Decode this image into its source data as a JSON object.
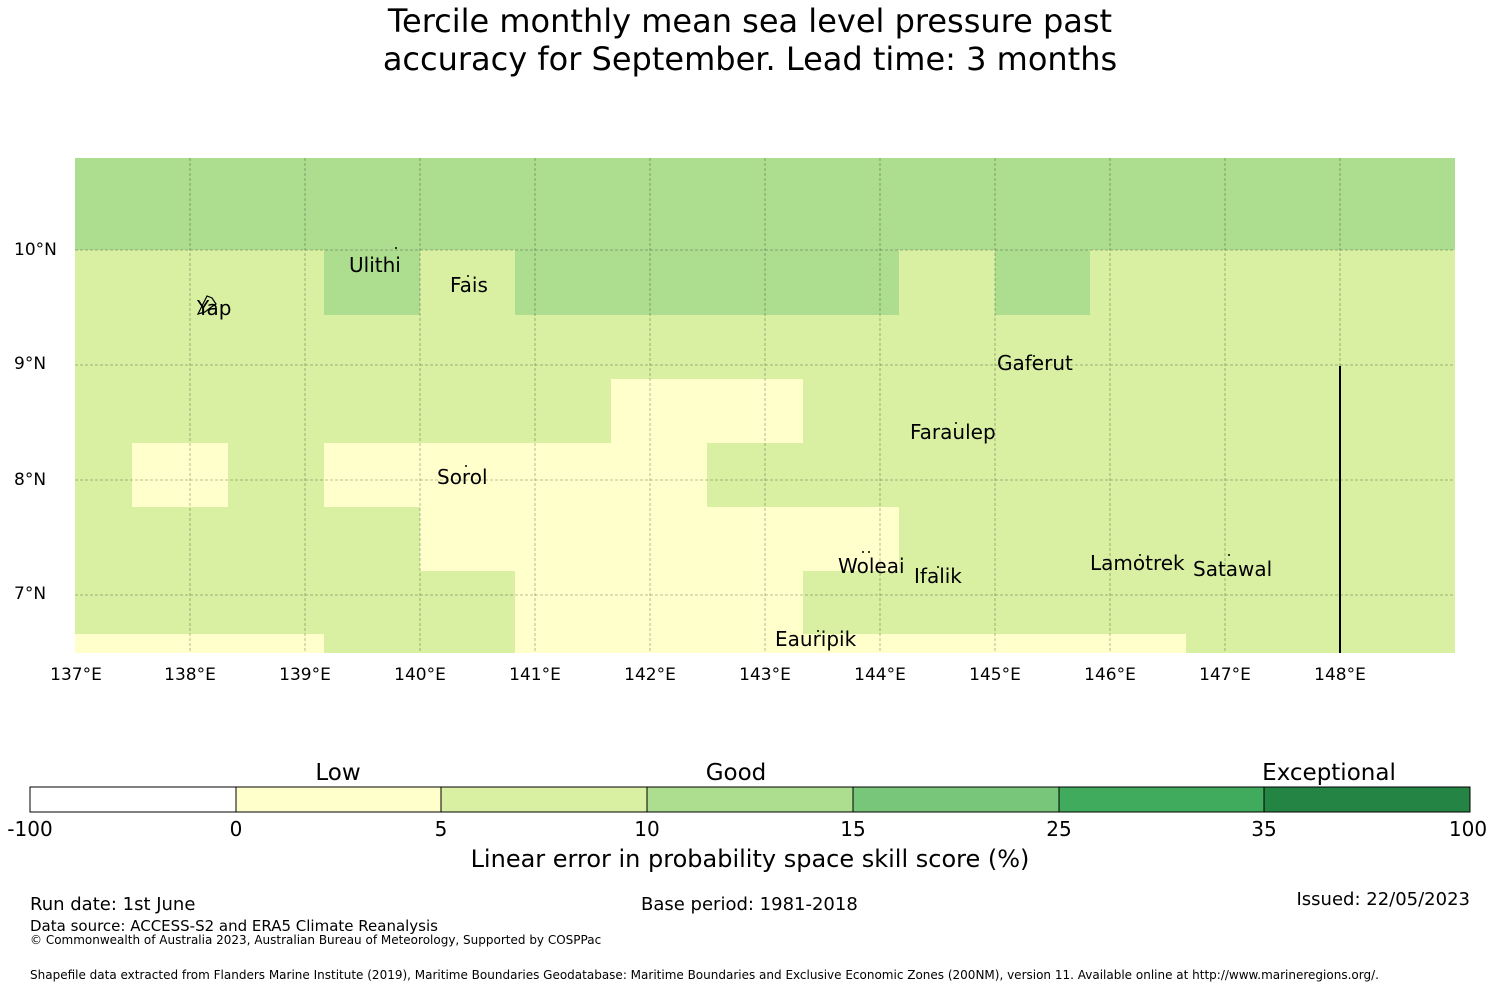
{
  "title_line1": "Tercile monthly mean sea level pressure past",
  "title_line2": "accuracy for September. Lead time: 3 months",
  "map": {
    "x_ticks": [
      "137°E",
      "138°E",
      "139°E",
      "140°E",
      "141°E",
      "142°E",
      "143°E",
      "144°E",
      "145°E",
      "146°E",
      "147°E",
      "148°E"
    ],
    "y_ticks": [
      "10°N",
      "9°N",
      "8°N",
      "7°N"
    ],
    "islands": [
      "Ulithi",
      "Fais",
      "Yap",
      "Gaferut",
      "Faraulep",
      "Sorol",
      "Woleai",
      "Ifalik",
      "Lamotrek",
      "Satawal",
      "Eauripik"
    ],
    "grid_categories_note": "cells coloured by skill score category"
  },
  "colorbar": {
    "categories": [
      "Low",
      "Good",
      "Exceptional"
    ],
    "ticks": [
      "-100",
      "0",
      "5",
      "10",
      "15",
      "25",
      "35",
      "100"
    ],
    "colors": [
      "#ffffff",
      "#ffffcc",
      "#d9f0a3",
      "#addd8e",
      "#78c679",
      "#41ab5d",
      "#238443"
    ],
    "label": "Linear error in probability space skill score (%)"
  },
  "footer": {
    "run_date": "Run date: 1st June",
    "base_period": "Base period: 1981-2018",
    "issued": "Issued: 22/05/2023",
    "data_source": "Data source: ACCESS-S2 and ERA5 Climate Reanalysis",
    "copyright": "© Commonwealth of Australia 2023, Australian Bureau of Meteorology, Supported by COSPPac",
    "shapefile": "Shapefile data extracted from Flanders Marine Institute (2019), Maritime Boundaries Geodatabase: Maritime Boundaries and Exclusive Economic Zones (200NM), version 11. Available online at http://www.marineregions.org/."
  }
}
